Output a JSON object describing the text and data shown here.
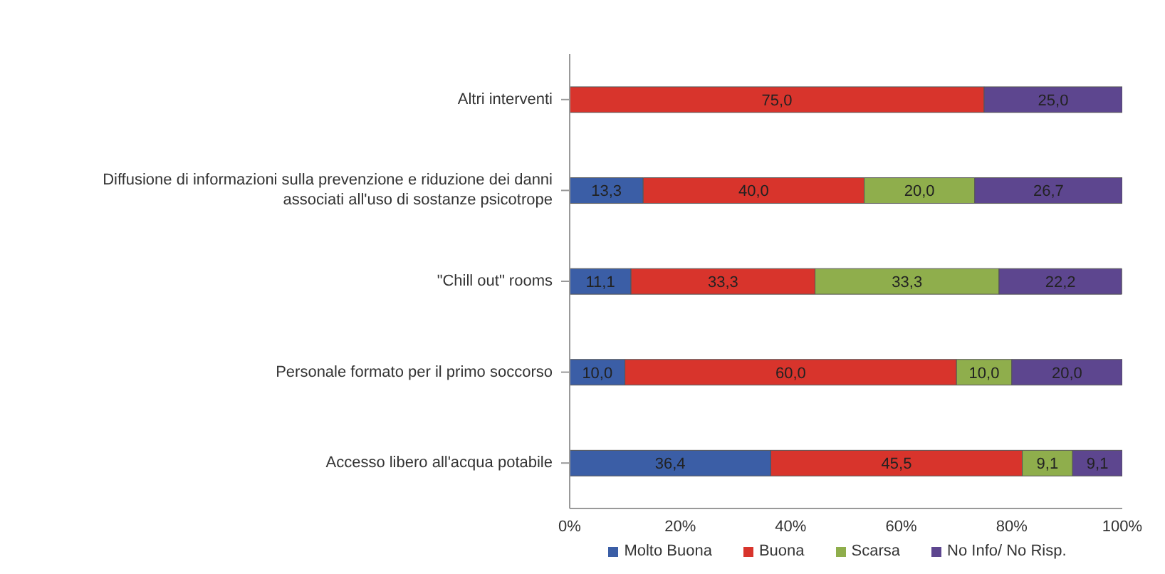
{
  "chart_data": {
    "type": "bar",
    "orientation": "horizontal",
    "stacked": true,
    "legend": "bottom",
    "grid": false,
    "categories": [
      "Altri interventi",
      "Diffusione di informazioni sulla prevenzione e riduzione dei danni associati all'uso di sostanze psicotrope",
      "\"Chill out\" rooms",
      "Personale formato per il primo soccorso",
      "Accesso libero all'acqua potabile"
    ],
    "series": [
      {
        "name": "Molto Buona",
        "color": "#3b5ea6",
        "values": [
          null,
          13.3,
          11.1,
          10.0,
          36.4
        ],
        "value_labels": [
          null,
          "13,3",
          "11,1",
          "10,0",
          "36,4"
        ]
      },
      {
        "name": "Buona",
        "color": "#d8342c",
        "values": [
          75.0,
          40.0,
          33.3,
          60.0,
          45.5
        ],
        "value_labels": [
          "75,0",
          "40,0",
          "33,3",
          "60,0",
          "45,5"
        ]
      },
      {
        "name": "Scarsa",
        "color": "#8fae4c",
        "values": [
          null,
          20.0,
          33.3,
          10.0,
          9.1
        ],
        "value_labels": [
          null,
          "20,0",
          "33,3",
          "10,0",
          "9,1"
        ]
      },
      {
        "name": "No Info/ No Risp.",
        "color": "#5d468f",
        "values": [
          25.0,
          26.7,
          22.2,
          20.0,
          9.1
        ],
        "value_labels": [
          "25,0",
          "26,7",
          "22,2",
          "20,0",
          "9,1"
        ]
      }
    ],
    "xlim": [
      0,
      100
    ],
    "xticks": [
      {
        "value": 0,
        "label": "0%"
      },
      {
        "value": 20,
        "label": "20%"
      },
      {
        "value": 40,
        "label": "40%"
      },
      {
        "value": 60,
        "label": "60%"
      },
      {
        "value": 80,
        "label": "80%"
      },
      {
        "value": 100,
        "label": "100%"
      }
    ]
  }
}
